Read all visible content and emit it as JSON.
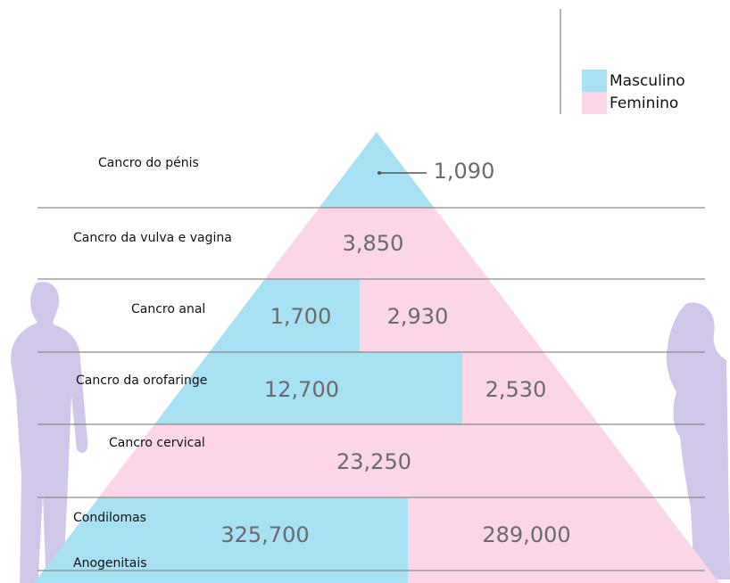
{
  "legend": {
    "items": [
      {
        "label": "Masculino",
        "color": "#a8e0f4"
      },
      {
        "label": "Feminino",
        "color": "#fcd5e8"
      }
    ]
  },
  "rows": [
    {
      "label": "Cancro do pénis",
      "values": [
        "1,090"
      ]
    },
    {
      "label": "Cancro da vulva e vagina",
      "values": [
        "3,850"
      ]
    },
    {
      "label": "Cancro anal",
      "values": [
        "1,700",
        "2,930"
      ]
    },
    {
      "label": "Cancro da orofaringe",
      "values": [
        "12,700",
        "2,530"
      ]
    },
    {
      "label": "Cancro cervical",
      "values": [
        "23,250"
      ]
    },
    {
      "label_lines": [
        "Condilomas",
        "Anogenitais"
      ],
      "values": [
        "325,700",
        "289,000"
      ]
    }
  ]
}
